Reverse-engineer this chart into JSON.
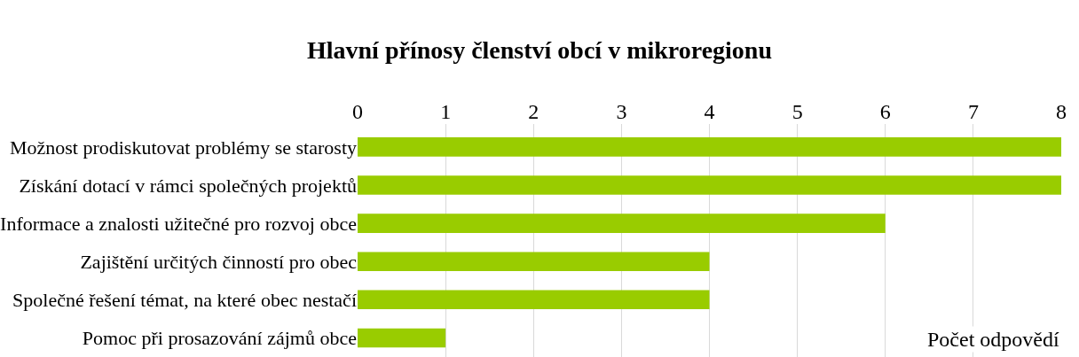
{
  "chart_data": {
    "type": "bar",
    "orientation": "horizontal",
    "title": "Hlavní přínosy členství obcí v mikroregionu",
    "xlabel": "Počet odpovědí",
    "categories": [
      "Možnost prodiskutovat problémy se starosty",
      "Získání dotací v rámci společných projektů",
      "Informace a znalosti užitečné pro rozvoj obce",
      "Zajištění určitých činností pro obec",
      "Společné řešení témat, na které obec nestačí",
      "Pomoc při prosazování zájmů obce"
    ],
    "values": [
      8,
      8,
      6,
      4,
      4,
      1
    ],
    "color": "#99cc00",
    "xlim": [
      0,
      8
    ],
    "xticks": [
      0,
      1,
      2,
      3,
      4,
      5,
      6,
      7,
      8
    ],
    "grid": "x"
  }
}
